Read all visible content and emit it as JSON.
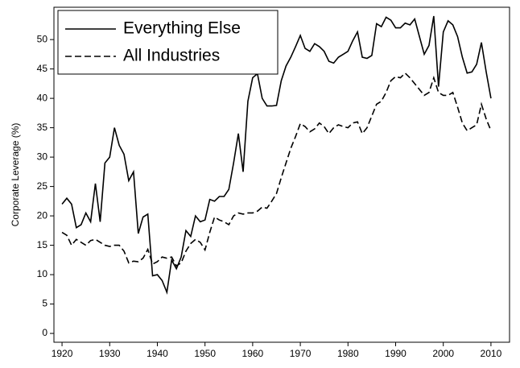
{
  "chart_data": {
    "type": "line",
    "y_label": "Corporate Leverage (%)",
    "x": [
      1920,
      1921,
      1922,
      1923,
      1924,
      1925,
      1926,
      1927,
      1928,
      1929,
      1930,
      1931,
      1932,
      1933,
      1934,
      1935,
      1936,
      1937,
      1938,
      1939,
      1940,
      1941,
      1942,
      1943,
      1944,
      1945,
      1946,
      1947,
      1948,
      1949,
      1950,
      1951,
      1952,
      1953,
      1954,
      1955,
      1956,
      1957,
      1958,
      1959,
      1960,
      1961,
      1962,
      1963,
      1964,
      1965,
      1966,
      1967,
      1968,
      1969,
      1970,
      1971,
      1972,
      1973,
      1974,
      1975,
      1976,
      1977,
      1978,
      1979,
      1980,
      1981,
      1982,
      1983,
      1984,
      1985,
      1986,
      1987,
      1988,
      1989,
      1990,
      1991,
      1992,
      1993,
      1994,
      1995,
      1996,
      1997,
      1998,
      1999,
      2000,
      2001,
      2002,
      2003,
      2004,
      2005,
      2006,
      2007,
      2008,
      2009,
      2010
    ],
    "series": [
      {
        "name": "Everything Else",
        "color": "#000000",
        "style": "solid",
        "values": [
          22,
          23,
          22,
          18,
          18.5,
          20.5,
          19,
          25.5,
          19,
          29,
          30,
          35,
          32,
          30.5,
          26,
          27.5,
          17,
          19.8,
          20.3,
          9.8,
          10,
          9,
          7,
          12.5,
          11,
          13,
          17.5,
          16.5,
          20,
          19,
          19.3,
          22.8,
          22.5,
          23.3,
          23.3,
          24.5,
          29,
          34,
          27.5,
          39.5,
          43.5,
          44.2,
          40,
          38.7,
          38.7,
          38.8,
          43,
          45.5,
          47,
          48.8,
          50.7,
          48.5,
          48,
          49.3,
          48.8,
          48,
          46.3,
          46,
          47,
          47.5,
          48,
          49.8,
          51.3,
          47,
          46.8,
          47.3,
          52.7,
          52.2,
          53.8,
          53.3,
          52,
          52,
          52.8,
          52.5,
          53.5,
          50.5,
          47.5,
          49,
          54,
          42,
          51.3,
          53.2,
          52.5,
          50.5,
          47,
          44.3,
          44.5,
          45.8,
          49.5,
          44.5,
          40
        ]
      },
      {
        "name": "All Industries",
        "color": "#000000",
        "style": "dashed",
        "values": [
          17.2,
          16.7,
          15,
          16,
          15.5,
          15,
          15.8,
          16,
          15.5,
          15,
          14.8,
          15,
          15,
          14,
          12,
          12.3,
          12.2,
          12.8,
          14.3,
          11.8,
          12.2,
          13,
          12.8,
          13,
          11.5,
          12,
          14,
          15.3,
          16,
          15.5,
          14.2,
          17.2,
          19.8,
          19.3,
          19,
          18.5,
          20,
          20.5,
          20.3,
          20.5,
          20.5,
          20.8,
          21.5,
          21.3,
          22.5,
          23.8,
          26.5,
          29,
          31.5,
          33.5,
          35.7,
          35.2,
          34.3,
          34.8,
          35.8,
          35.2,
          34,
          35,
          35.5,
          35.2,
          35,
          35.8,
          36,
          34,
          35,
          37,
          39,
          39.5,
          41,
          43,
          43.7,
          43.5,
          44.3,
          43.5,
          42.5,
          41.5,
          40.5,
          41,
          43.5,
          41,
          40.5,
          40.5,
          41,
          38.5,
          35.8,
          34.5,
          35,
          35.5,
          39,
          36.5,
          34.5
        ]
      }
    ],
    "xlim": [
      1918.3,
      2013.9
    ],
    "ylim": [
      -1.5,
      55.5
    ],
    "xticks": [
      1920,
      1930,
      1940,
      1950,
      1960,
      1970,
      1980,
      1990,
      2000,
      2010
    ],
    "yticks": [
      0,
      5,
      10,
      15,
      20,
      25,
      30,
      35,
      40,
      45,
      50
    ],
    "legend": "upper-left"
  }
}
